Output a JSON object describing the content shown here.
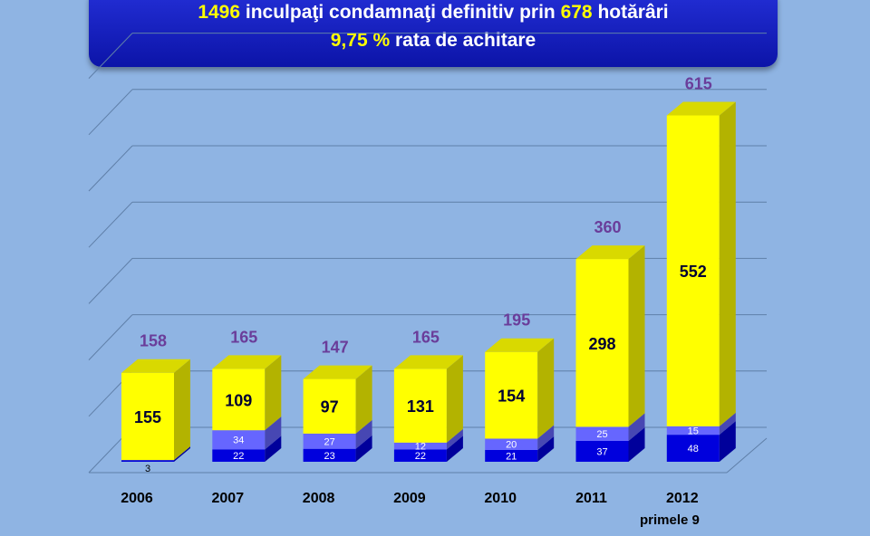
{
  "header": {
    "line1": {
      "n1": "1496",
      "t1": " inculpaţi condamnaţi definitiv prin ",
      "n2": "678",
      "t2": " hotărâri"
    },
    "line2": {
      "n1": "9,75 %",
      "t1": " rata de achitare"
    }
  },
  "note": "primele 9",
  "colors": {
    "background": "#8fb4e3",
    "yellow": "#ffff00",
    "lavender": "#6666ff",
    "blue": "#0000dd",
    "total_label": "#6a3d9a"
  },
  "chart_data": {
    "type": "bar",
    "stacked": true,
    "categories": [
      "2006",
      "2007",
      "2008",
      "2009",
      "2010",
      "2011",
      "2012"
    ],
    "series": [
      {
        "name": "blue",
        "values": [
          3,
          22,
          23,
          22,
          21,
          37,
          48
        ],
        "labels": [
          "3",
          "22",
          "23",
          "22",
          "21",
          "37",
          "48"
        ]
      },
      {
        "name": "lavender",
        "values": [
          0,
          34,
          27,
          12,
          20,
          25,
          15
        ],
        "labels": [
          "",
          "34",
          "27",
          "12",
          "20",
          "25",
          "15"
        ]
      },
      {
        "name": "yellow",
        "values": [
          155,
          109,
          97,
          131,
          154,
          298,
          552
        ],
        "labels": [
          "155",
          "109",
          "97",
          "131",
          "154",
          "298",
          "552"
        ]
      }
    ],
    "totals": [
      "158",
      "165",
      "147",
      "165",
      "195",
      "360",
      "615"
    ],
    "ylim": [
      0,
      700
    ],
    "grid": true,
    "title": "",
    "xlabel": "",
    "ylabel": ""
  }
}
